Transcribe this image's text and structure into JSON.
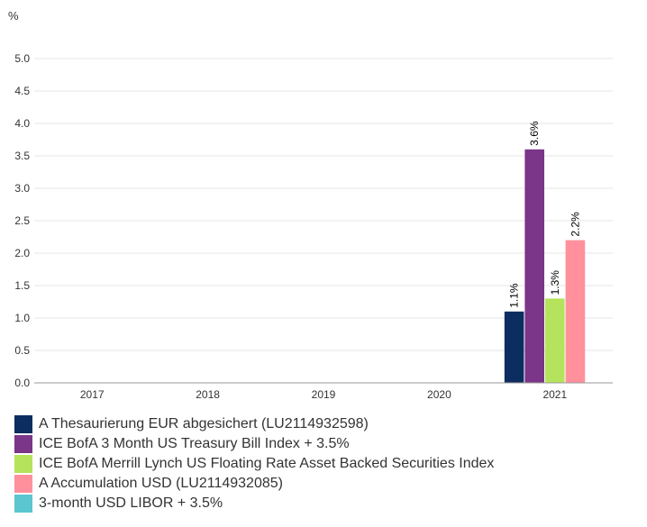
{
  "chart_data": {
    "type": "bar",
    "unit_label": "%",
    "categories": [
      "2017",
      "2018",
      "2019",
      "2020",
      "2021"
    ],
    "ylim": [
      0,
      5
    ],
    "yticks": [
      "0.0",
      "0.5",
      "1.0",
      "1.5",
      "2.0",
      "2.5",
      "3.0",
      "3.5",
      "4.0",
      "4.5",
      "5.0"
    ],
    "grid": true,
    "legend_position": "bottom",
    "series": [
      {
        "name": "A Thesaurierung EUR abgesichert (LU2114932598)",
        "color": "#0c2d5f",
        "values": [
          null,
          null,
          null,
          null,
          1.1
        ],
        "labels": [
          null,
          null,
          null,
          null,
          "1.1%"
        ]
      },
      {
        "name": "ICE BofA 3 Month US Treasury Bill Index + 3.5%",
        "color": "#7b3589",
        "values": [
          null,
          null,
          null,
          null,
          3.6
        ],
        "labels": [
          null,
          null,
          null,
          null,
          "3.6%"
        ]
      },
      {
        "name": "ICE BofA Merrill Lynch US Floating Rate Asset Backed Securities Index",
        "color": "#b5e35b",
        "values": [
          null,
          null,
          null,
          null,
          1.3
        ],
        "labels": [
          null,
          null,
          null,
          null,
          "1.3%"
        ]
      },
      {
        "name": "A Accumulation USD (LU2114932085)",
        "color": "#ff909c",
        "values": [
          null,
          null,
          null,
          null,
          2.2
        ],
        "labels": [
          null,
          null,
          null,
          null,
          "2.2%"
        ]
      },
      {
        "name": "3-month USD LIBOR + 3.5%",
        "color": "#5bc6d0",
        "values": [
          null,
          null,
          null,
          null,
          null
        ],
        "labels": [
          null,
          null,
          null,
          null,
          null
        ]
      }
    ]
  }
}
